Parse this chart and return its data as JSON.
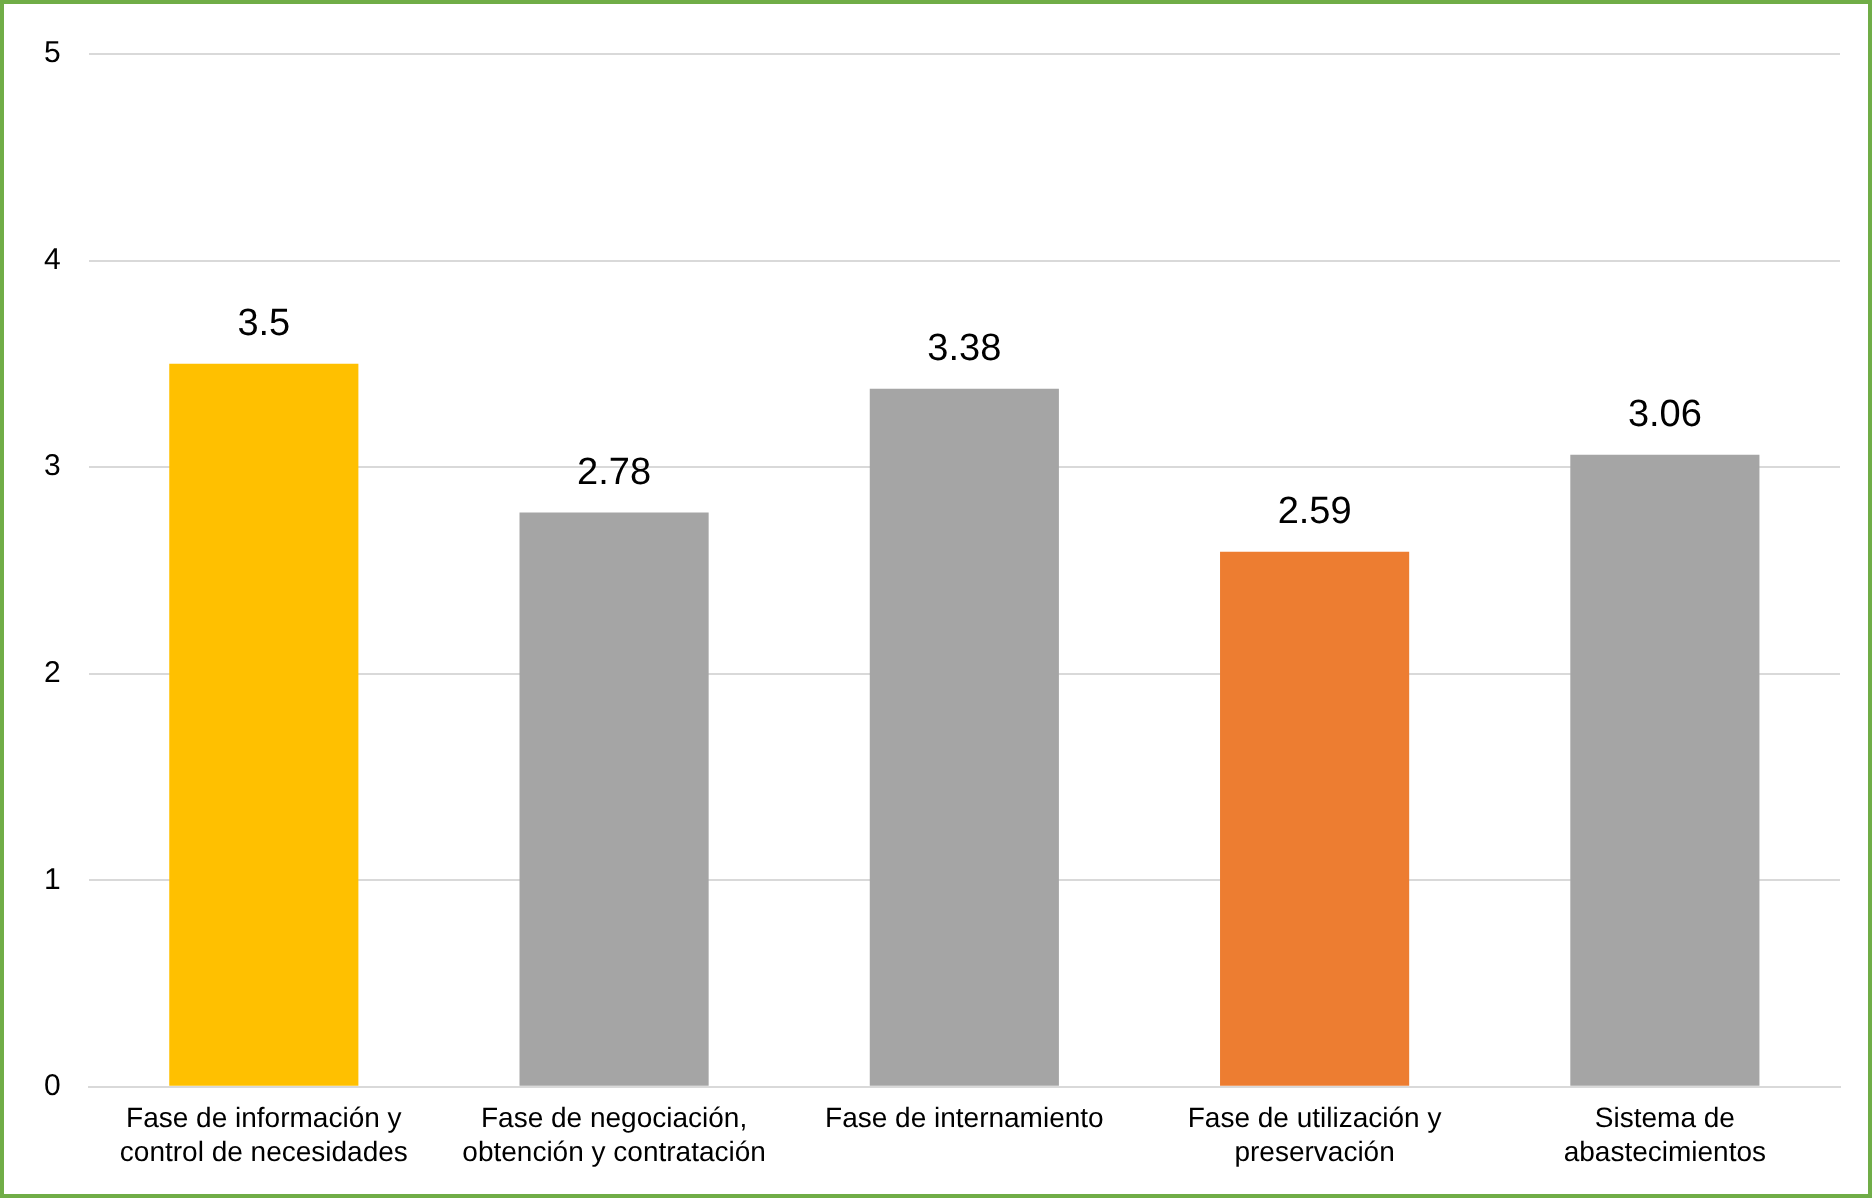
{
  "chart_data": {
    "type": "bar",
    "categories": [
      "Fase de información y control de necesidades",
      "Fase de negociación, obtención y contratación",
      "Fase de internamiento",
      "Fase de utilización y preservación",
      "Sistema de abastecimientos"
    ],
    "values": [
      3.5,
      2.78,
      3.38,
      2.59,
      3.06
    ],
    "colors": [
      "#ffc000",
      "#a5a5a5",
      "#a5a5a5",
      "#ed7d31",
      "#a5a5a5"
    ],
    "ylim": [
      0,
      5
    ],
    "yticks": [
      0,
      1,
      2,
      3,
      4,
      5
    ],
    "grid": "y",
    "data_labels": true,
    "legend": false
  }
}
